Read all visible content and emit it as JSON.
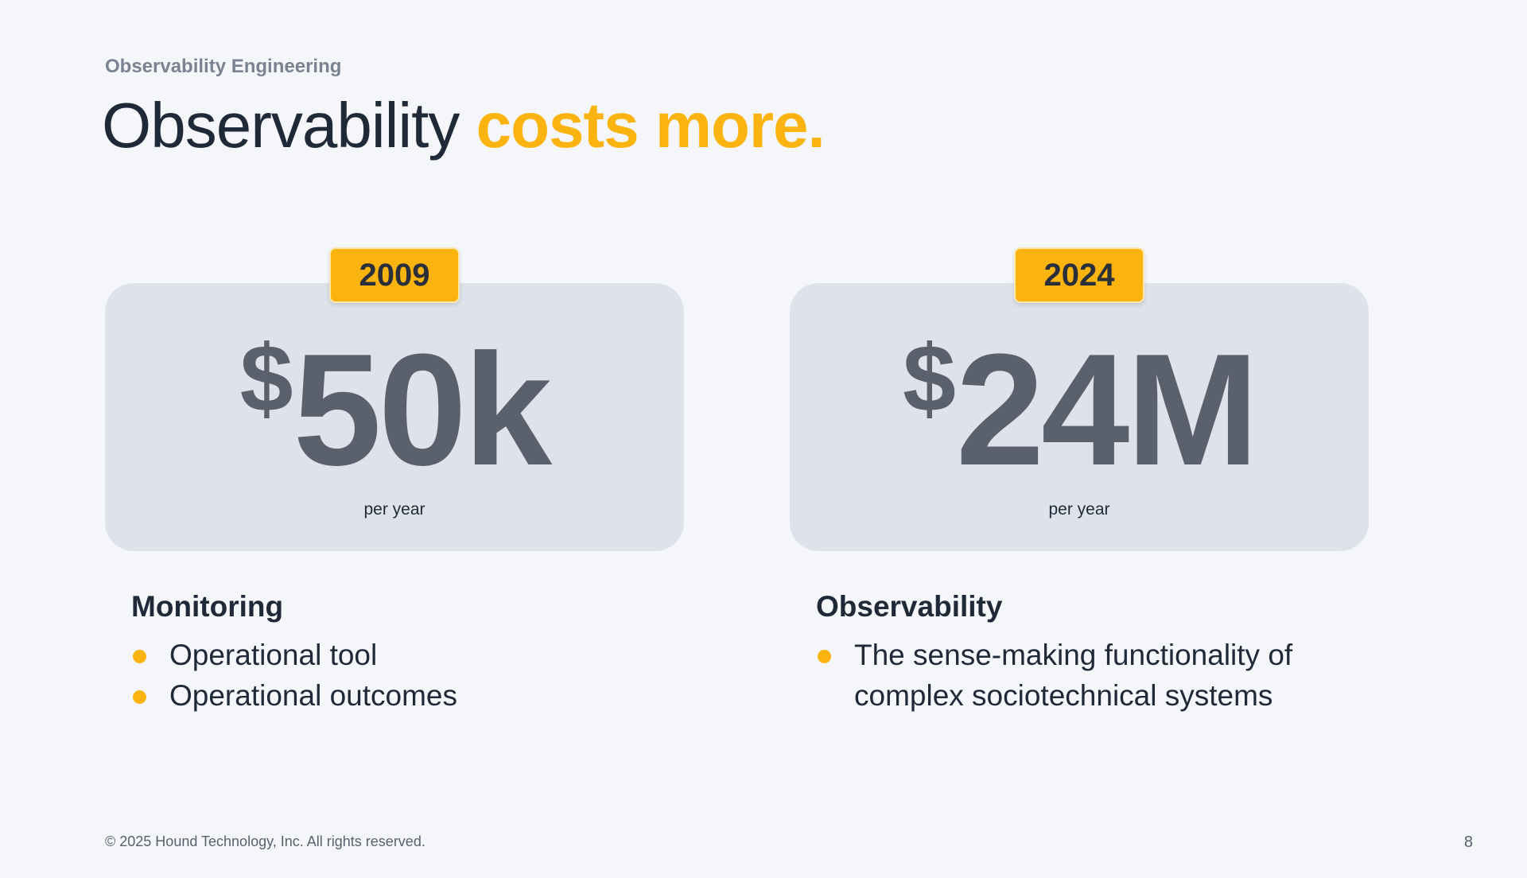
{
  "header": {
    "eyebrow": "Observability Engineering",
    "title_main": "Observability ",
    "title_accent": "costs more."
  },
  "cards": [
    {
      "year": "2009",
      "currency": "$",
      "amount": "50k",
      "period": "per year"
    },
    {
      "year": "2024",
      "currency": "$",
      "amount": "24M",
      "period": "per year"
    }
  ],
  "sections": [
    {
      "heading": "Monitoring",
      "bullets": [
        "Operational tool",
        "Operational outcomes"
      ]
    },
    {
      "heading": "Observability",
      "bullets": [
        "The sense-making functionality of complex sociotechnical systems"
      ]
    }
  ],
  "footer": {
    "copyright": "© 2025 Hound Technology, Inc. All rights reserved.",
    "page_number": "8"
  },
  "colors": {
    "accent": "#fbb40f",
    "background": "#f4f6fa",
    "card": "#dee3eb",
    "amount": "#5b606d",
    "text": "#1f2937"
  }
}
